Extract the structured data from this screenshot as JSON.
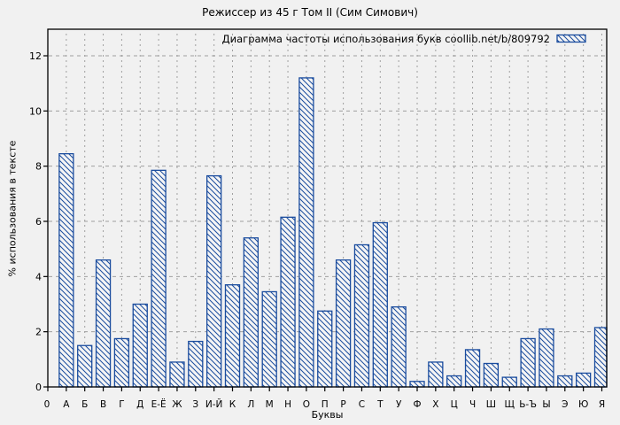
{
  "window": {
    "title": "Режиссер из 45 г Том II (Сим Симович)"
  },
  "colors": {
    "bar_stroke": "#1a4c9e",
    "bar_fill": "#f5f5f5",
    "grid": "#a0a0a0",
    "axis": "#000000",
    "background": "#f1f1f1",
    "text": "#000000"
  },
  "chart_data": {
    "type": "bar",
    "title": "Режиссер из 45 г Том II (Сим Симович)",
    "legend_label": "Диаграмма частоты использования букв coollib.net/b/809792",
    "legend_position": "top-right-inside",
    "xlabel": "Буквы",
    "ylabel": "% использования в тексте",
    "origin_label": "0",
    "grid": true,
    "ylim": [
      0,
      13
    ],
    "yticks": [
      0,
      2,
      4,
      6,
      8,
      10,
      12
    ],
    "categories": [
      "А",
      "Б",
      "В",
      "Г",
      "Д",
      "Е-Ё",
      "Ж",
      "З",
      "И-Й",
      "К",
      "Л",
      "М",
      "Н",
      "О",
      "П",
      "Р",
      "С",
      "Т",
      "У",
      "Ф",
      "Х",
      "Ц",
      "Ч",
      "Ш",
      "Щ",
      "Ь-Ъ",
      "Ы",
      "Э",
      "Ю",
      "Я"
    ],
    "values": [
      8.45,
      1.5,
      4.6,
      1.75,
      3.0,
      7.85,
      0.9,
      1.65,
      7.65,
      3.7,
      5.4,
      3.45,
      6.15,
      11.2,
      2.75,
      4.6,
      5.15,
      5.95,
      2.9,
      0.2,
      0.9,
      0.4,
      1.35,
      0.85,
      0.35,
      1.75,
      2.1,
      0.4,
      0.5,
      2.15
    ]
  }
}
